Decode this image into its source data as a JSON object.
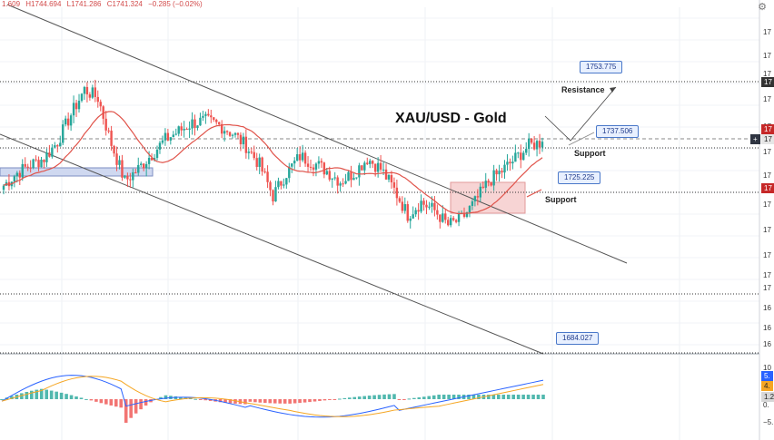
{
  "header": {
    "ohlc_values": [
      "1.609",
      "H1744.694",
      "L1741.286",
      "C1741.324",
      "−0.285 (−0.02%)"
    ]
  },
  "title": "XAU/USD - Gold",
  "annotations": {
    "resistance": "Resistance",
    "support_upper": "Support",
    "support_lower": "Support"
  },
  "callouts": [
    "1753.775",
    "1737.506",
    "1725.225",
    "1684.027"
  ],
  "price_axis_ticks": [
    "17",
    "17",
    "17",
    "17",
    "17",
    "17",
    "17",
    "17",
    "17",
    "17",
    "17",
    "17",
    "16",
    "16",
    "16",
    "16"
  ],
  "macd_axis_ticks": [
    "10",
    "5.",
    "0.",
    "−5."
  ],
  "axis_badges": [
    "17",
    "17",
    "17",
    "17",
    "5.",
    "4.",
    "1.2"
  ],
  "colors": {
    "up": "#26a69a",
    "down": "#ef5350",
    "ma": "#e0534a",
    "macd_line": "#2962ff",
    "signal_line": "#f5a623",
    "trendline": "#555555",
    "dotted_level": "#333333",
    "zone_fill": "#f4c5c5",
    "blue_zone": "#cfd8f0",
    "price_badge": "#c62828",
    "blue_badge": "#2962ff",
    "orange_badge": "#f5a623",
    "grey_badge": "#d7d7d7"
  },
  "chart_data": {
    "type": "candlestick",
    "symbol": "XAU/USD",
    "title": "XAU/USD - Gold",
    "last": {
      "high": 1744.694,
      "low": 1741.286,
      "close": 1741.324,
      "change": -0.285,
      "change_pct": -0.02
    },
    "levels": [
      {
        "label": "Resistance",
        "value": 1753.775
      },
      {
        "label": "Support",
        "value": 1737.506
      },
      {
        "label": "Support",
        "value": 1725.225
      },
      {
        "value": 1684.027
      }
    ],
    "close_path": [
      1720,
      1726,
      1730,
      1733,
      1741,
      1754,
      1766,
      1762,
      1740,
      1722,
      1728,
      1735,
      1742,
      1746,
      1750,
      1751,
      1749,
      1745,
      1739,
      1730,
      1715,
      1726,
      1734,
      1731,
      1727,
      1722,
      1726,
      1733,
      1728,
      1718,
      1706,
      1712,
      1708,
      1701,
      1704,
      1712,
      1722,
      1727,
      1733,
      1739,
      1741
    ],
    "indicator": "MACD",
    "macd_axis": [
      "10",
      "5.",
      "0.",
      "−5."
    ]
  }
}
